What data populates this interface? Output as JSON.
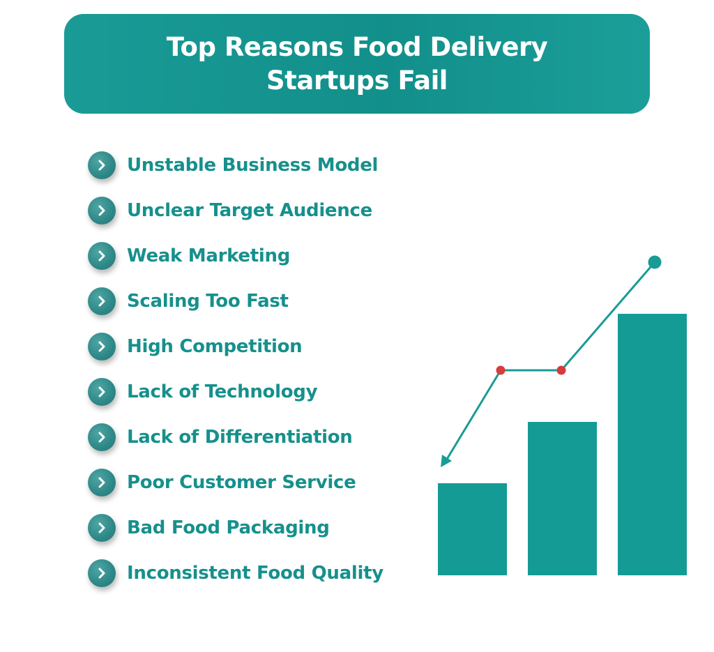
{
  "title": "Top Reasons Food Delivery Startups Fail",
  "reasons": [
    "Unstable Business Model",
    "Unclear Target Audience",
    "Weak Marketing",
    "Scaling Too Fast",
    "High Competition",
    "Lack of Technology",
    "Lack of Differentiation",
    "Poor Customer Service",
    "Bad Food Packaging",
    "Inconsistent Food Quality"
  ],
  "icons": {
    "bullet": "chevron-right-icon"
  },
  "colors": {
    "teal": "#159b96",
    "text_teal": "#16908c",
    "marker_red": "#d63c3c",
    "white": "#ffffff"
  }
}
